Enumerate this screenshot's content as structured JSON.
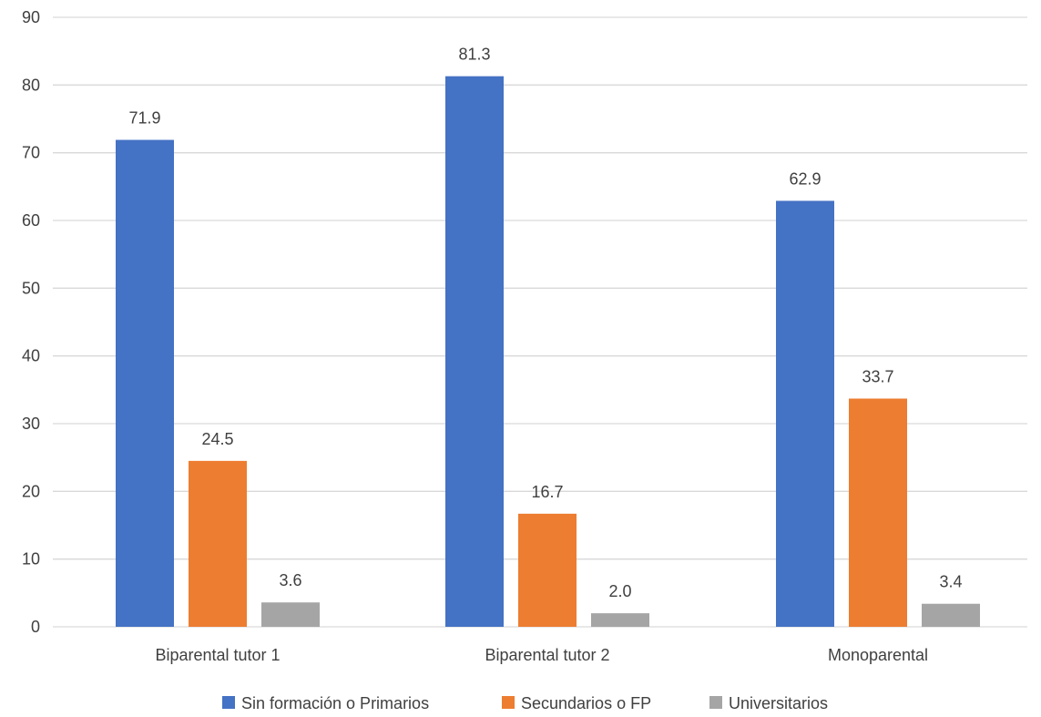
{
  "chart_data": {
    "type": "bar",
    "categories": [
      "Biparental tutor 1",
      "Biparental tutor 2",
      "Monoparental"
    ],
    "series": [
      {
        "name": "Sin formación o Primarios",
        "color": "#4472C4",
        "values": [
          71.9,
          81.3,
          62.9
        ],
        "labels": [
          "71.9",
          "81.3",
          "62.9"
        ]
      },
      {
        "name": "Secundarios o FP",
        "color": "#ED7D31",
        "values": [
          24.5,
          16.7,
          33.7
        ],
        "labels": [
          "24.5",
          "16.7",
          "33.7"
        ]
      },
      {
        "name": "Universitarios",
        "color": "#A5A5A5",
        "values": [
          3.6,
          2.0,
          3.4
        ],
        "labels": [
          "3.6",
          "2.0",
          "3.4"
        ]
      }
    ],
    "yticks": [
      "0",
      "10",
      "20",
      "30",
      "40",
      "50",
      "60",
      "70",
      "80",
      "90"
    ],
    "ylim": [
      0,
      90
    ],
    "grid": true,
    "legend_position": "bottom",
    "gridline_color": "#D9D9D9"
  }
}
